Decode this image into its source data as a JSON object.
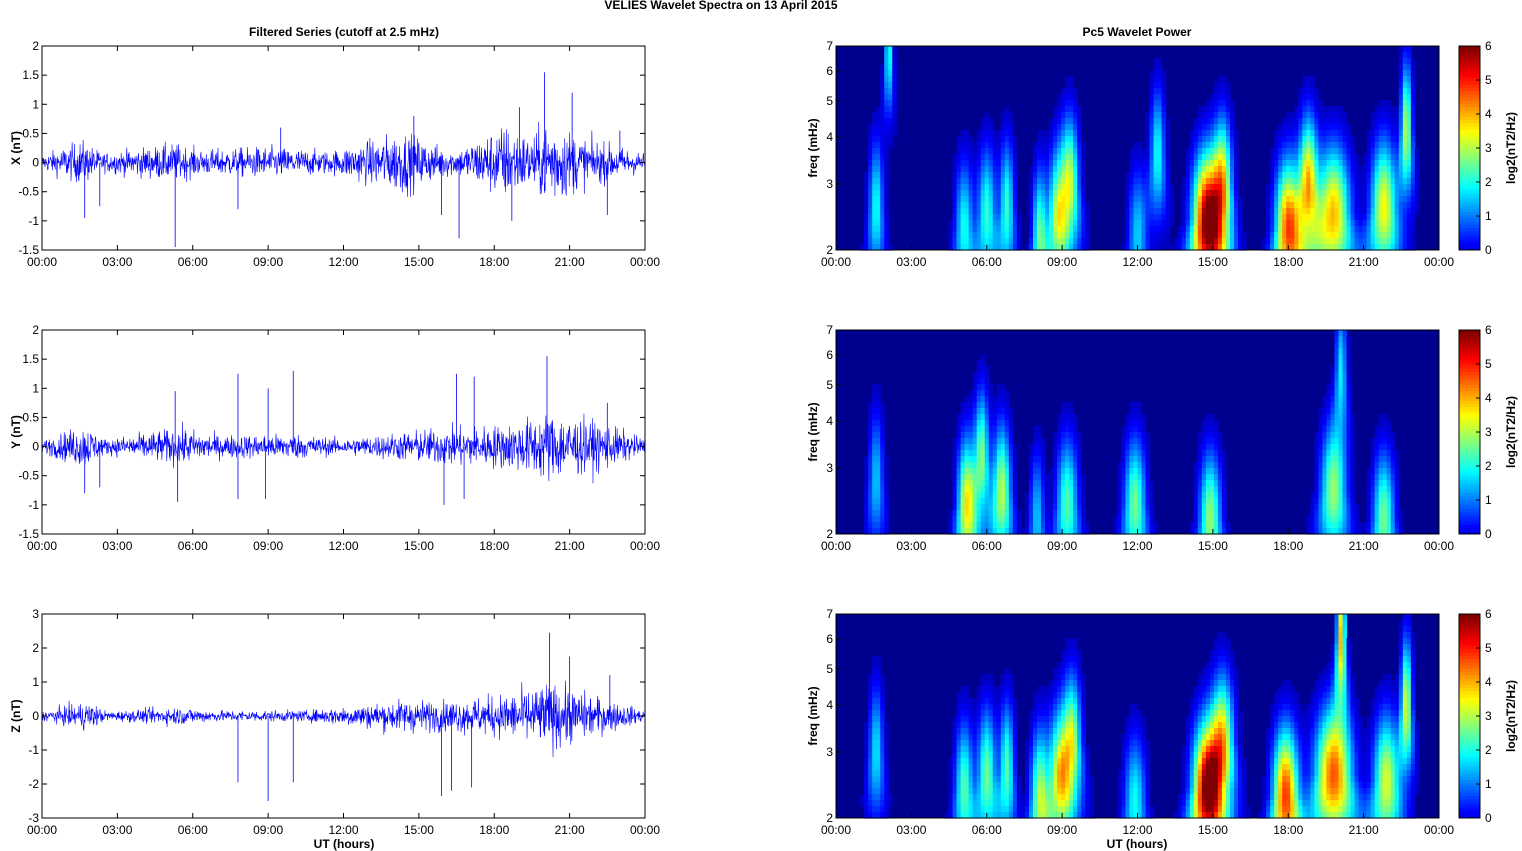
{
  "figure": {
    "title": "VELIES Wavelet Spectra on 13 April     2015",
    "left_title": "Filtered Series (cutoff at 2.5 mHz)",
    "right_title": "Pc5 Wavelet Power",
    "xlabel": "UT (hours)",
    "colorbar_label": "log2(nT2/Hz)",
    "freq_label": "freq (mHz)"
  },
  "x_ticks": [
    "00:00",
    "03:00",
    "06:00",
    "09:00",
    "12:00",
    "15:00",
    "18:00",
    "21:00",
    "00:00"
  ],
  "colorbar_ticks": [
    "0",
    "1",
    "2",
    "3",
    "4",
    "5",
    "6"
  ],
  "freq_ticks": [
    "2",
    "3",
    "4",
    "5",
    "6",
    "7"
  ],
  "chart_data": [
    {
      "type": "line",
      "component": "X",
      "ylabel": "X (nT)",
      "ylim": [
        -1.5,
        2
      ],
      "xlim_hours": [
        0,
        24
      ],
      "yticks": [
        "-1.5",
        "-1",
        "-0.5",
        "0",
        "0.5",
        "1",
        "1.5",
        "2"
      ],
      "color": "#0000ff",
      "activity": [
        [
          0,
          0.12
        ],
        [
          1.6,
          0.35
        ],
        [
          2.4,
          0.15
        ],
        [
          5.3,
          0.3
        ],
        [
          6.3,
          0.2
        ],
        [
          9,
          0.25
        ],
        [
          11.5,
          0.18
        ],
        [
          14.4,
          0.5
        ],
        [
          15.5,
          0.3
        ],
        [
          16.5,
          0.2
        ],
        [
          18.4,
          0.6
        ],
        [
          19.5,
          0.4
        ],
        [
          20.2,
          0.7
        ],
        [
          21.5,
          0.4
        ],
        [
          23,
          0.25
        ],
        [
          24,
          0.15
        ]
      ],
      "spikes": [
        [
          1.7,
          -0.95
        ],
        [
          2.3,
          -0.75
        ],
        [
          5.3,
          -1.45
        ],
        [
          7.8,
          -0.8
        ],
        [
          9.5,
          0.6
        ],
        [
          14.8,
          0.8
        ],
        [
          15.9,
          -0.9
        ],
        [
          16.6,
          -1.3
        ],
        [
          18.7,
          -1.0
        ],
        [
          19,
          0.95
        ],
        [
          20,
          1.55
        ],
        [
          21.1,
          1.2
        ],
        [
          22.5,
          -0.9
        ],
        [
          23,
          0.55
        ]
      ]
    },
    {
      "type": "line",
      "component": "Y",
      "ylabel": "Y (nT)",
      "ylim": [
        -1.5,
        2
      ],
      "xlim_hours": [
        0,
        24
      ],
      "yticks": [
        "-1.5",
        "-1",
        "-0.5",
        "0",
        "0.5",
        "1",
        "1.5",
        "2"
      ],
      "color": "#0000ff",
      "activity": [
        [
          0,
          0.1
        ],
        [
          1.7,
          0.35
        ],
        [
          2.5,
          0.12
        ],
        [
          5.5,
          0.3
        ],
        [
          7,
          0.18
        ],
        [
          10,
          0.2
        ],
        [
          12,
          0.12
        ],
        [
          14.8,
          0.25
        ],
        [
          16,
          0.3
        ],
        [
          18.5,
          0.35
        ],
        [
          20.3,
          0.55
        ],
        [
          22.5,
          0.35
        ],
        [
          24,
          0.12
        ]
      ],
      "spikes": [
        [
          1.7,
          -0.8
        ],
        [
          2.3,
          -0.7
        ],
        [
          5.3,
          0.95
        ],
        [
          5.4,
          -0.95
        ],
        [
          7.8,
          1.25
        ],
        [
          7.8,
          -0.9
        ],
        [
          8.9,
          -0.9
        ],
        [
          9,
          1.0
        ],
        [
          10,
          1.3
        ],
        [
          16,
          -1.0
        ],
        [
          16.5,
          1.25
        ],
        [
          16.8,
          -0.9
        ],
        [
          17.2,
          1.2
        ],
        [
          20.1,
          1.55
        ],
        [
          22.5,
          0.75
        ]
      ]
    },
    {
      "type": "line",
      "component": "Z",
      "ylabel": "Z (nT)",
      "ylim": [
        -3,
        3
      ],
      "xlim_hours": [
        0,
        24
      ],
      "yticks": [
        "-3",
        "-2",
        "-1",
        "0",
        "1",
        "2",
        "3"
      ],
      "color": "#0000ff",
      "activity": [
        [
          0,
          0.12
        ],
        [
          1.8,
          0.4
        ],
        [
          2.6,
          0.12
        ],
        [
          5.3,
          0.25
        ],
        [
          7,
          0.15
        ],
        [
          10.5,
          0.15
        ],
        [
          14.5,
          0.45
        ],
        [
          16,
          0.4
        ],
        [
          18.5,
          0.6
        ],
        [
          20.3,
          0.9
        ],
        [
          22.7,
          0.4
        ],
        [
          24,
          0.15
        ]
      ],
      "spikes": [
        [
          7.8,
          -1.95
        ],
        [
          9,
          -2.5
        ],
        [
          10,
          -1.95
        ],
        [
          15.9,
          -2.35
        ],
        [
          16.3,
          -2.2
        ],
        [
          17.1,
          -2.1
        ],
        [
          20.2,
          2.45
        ],
        [
          21,
          1.75
        ],
        [
          22.6,
          1.2
        ]
      ]
    },
    {
      "type": "heatmap",
      "component": "X",
      "ylabel": "freq (mHz)",
      "ylim_mHz": [
        2,
        7
      ],
      "y_scale": "log",
      "xlim_hours": [
        0,
        24
      ],
      "zlim": [
        0,
        6
      ],
      "blobs": [
        [
          1.6,
          2.6,
          0.2,
          2.2
        ],
        [
          2.1,
          7,
          0.1,
          2.5
        ],
        [
          5.1,
          2.3,
          0.25,
          2.2
        ],
        [
          6.0,
          2.5,
          0.25,
          2.4
        ],
        [
          6.8,
          2.6,
          0.2,
          2.4
        ],
        [
          8.1,
          2.2,
          0.2,
          2.6
        ],
        [
          8.8,
          2.5,
          0.25,
          2.8
        ],
        [
          9.3,
          3.0,
          0.25,
          3.2
        ],
        [
          12,
          2.2,
          0.25,
          1.8
        ],
        [
          12.8,
          3.6,
          0.2,
          2.2
        ],
        [
          14.8,
          2.4,
          0.4,
          6.0
        ],
        [
          15.4,
          3.0,
          0.25,
          3.2
        ],
        [
          18.0,
          2.3,
          0.35,
          4.6
        ],
        [
          18.8,
          3.0,
          0.25,
          3.8
        ],
        [
          19.8,
          2.5,
          0.45,
          4.0
        ],
        [
          21.8,
          2.6,
          0.35,
          3.6
        ],
        [
          22.7,
          4.2,
          0.15,
          3.2
        ]
      ]
    },
    {
      "type": "heatmap",
      "component": "Y",
      "ylabel": "freq (mHz)",
      "ylim_mHz": [
        2,
        7
      ],
      "y_scale": "log",
      "xlim_hours": [
        0,
        24
      ],
      "zlim": [
        0,
        6
      ],
      "blobs": [
        [
          1.6,
          2.8,
          0.2,
          1.8
        ],
        [
          5.2,
          2.4,
          0.25,
          3.6
        ],
        [
          5.8,
          3.2,
          0.2,
          2.8
        ],
        [
          6.6,
          2.6,
          0.25,
          3.2
        ],
        [
          8,
          2.2,
          0.2,
          1.8
        ],
        [
          9.2,
          2.4,
          0.3,
          2.6
        ],
        [
          11.9,
          2.4,
          0.3,
          2.8
        ],
        [
          14.9,
          2.2,
          0.3,
          3.0
        ],
        [
          19.8,
          2.6,
          0.35,
          3.0
        ],
        [
          21.8,
          2.2,
          0.3,
          2.8
        ],
        [
          20.1,
          5.5,
          0.15,
          2.0
        ]
      ]
    },
    {
      "type": "heatmap",
      "component": "Z",
      "ylabel": "freq (mHz)",
      "ylim_mHz": [
        2,
        7
      ],
      "y_scale": "log",
      "xlim_hours": [
        0,
        24
      ],
      "zlim": [
        0,
        6
      ],
      "blobs": [
        [
          1.6,
          3.0,
          0.2,
          2.0
        ],
        [
          5.1,
          2.4,
          0.25,
          2.6
        ],
        [
          6.0,
          2.6,
          0.25,
          2.8
        ],
        [
          6.8,
          2.7,
          0.2,
          2.6
        ],
        [
          8.1,
          2.3,
          0.25,
          3.0
        ],
        [
          8.9,
          2.6,
          0.3,
          3.4
        ],
        [
          9.4,
          3.2,
          0.25,
          3.0
        ],
        [
          11.9,
          2.2,
          0.3,
          2.2
        ],
        [
          14.8,
          2.4,
          0.4,
          5.8
        ],
        [
          15.4,
          3.2,
          0.3,
          3.4
        ],
        [
          17.9,
          2.3,
          0.35,
          4.8
        ],
        [
          19.8,
          2.6,
          0.5,
          4.6
        ],
        [
          20.1,
          6.0,
          0.12,
          4.0
        ],
        [
          21.9,
          2.5,
          0.35,
          3.4
        ],
        [
          22.7,
          4.0,
          0.15,
          3.4
        ]
      ]
    }
  ]
}
